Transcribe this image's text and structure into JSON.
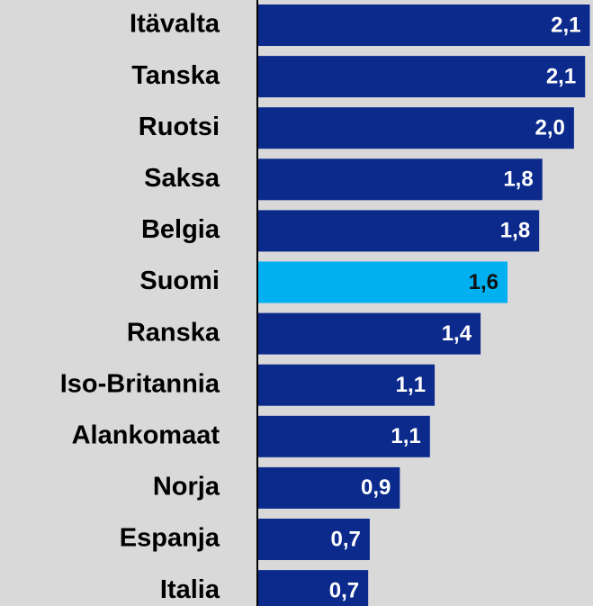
{
  "chart_data": {
    "type": "barh",
    "categories": [
      "Itävalta",
      "Tanska",
      "Ruotsi",
      "Saksa",
      "Belgia",
      "Suomi",
      "Ranska",
      "Iso-Britannia",
      "Alankomaat",
      "Norja",
      "Espanja",
      "Italia"
    ],
    "values": [
      2.1,
      2.07,
      2.0,
      1.8,
      1.78,
      1.58,
      1.41,
      1.12,
      1.09,
      0.9,
      0.71,
      0.7
    ],
    "value_labels": [
      "2,1",
      "2,1",
      "2,0",
      "1,8",
      "1,8",
      "1,6",
      "1,4",
      "1,1",
      "1,1",
      "0,9",
      "0,7",
      "0,7"
    ],
    "colors": [
      "#0b2a8c",
      "#0b2a8c",
      "#0b2a8c",
      "#0b2a8c",
      "#0b2a8c",
      "#00b0f0",
      "#0b2a8c",
      "#0b2a8c",
      "#0b2a8c",
      "#0b2a8c",
      "#0b2a8c",
      "#0b2a8c"
    ],
    "xlim": [
      0,
      2.12
    ]
  }
}
